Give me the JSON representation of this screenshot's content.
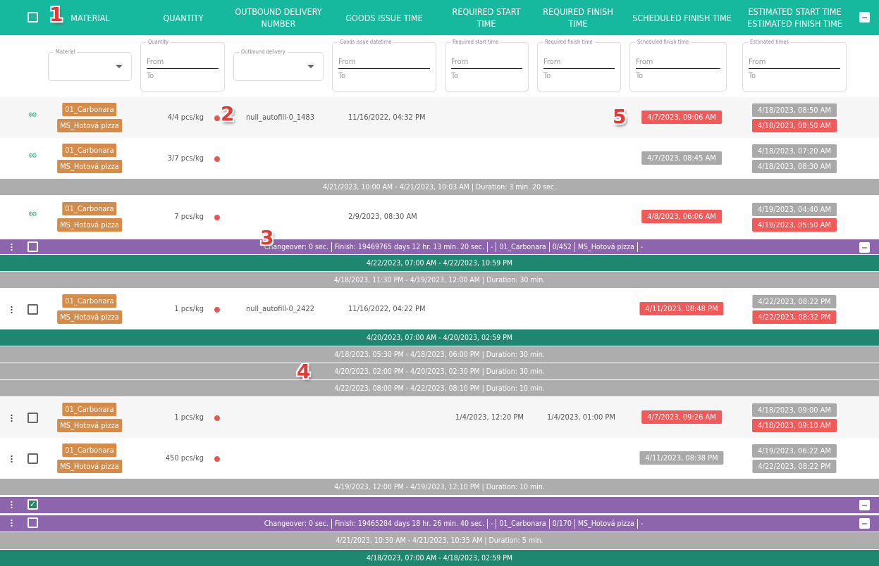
{
  "header": {
    "columns": [
      "MATERIAL",
      "QUANTITY",
      "OUTBOUND DELIVERY NUMBER",
      "GOODS ISSUE TIME",
      "REQUIRED START TIME",
      "REQUIRED FINISH TIME",
      "SCHEDULED FINISH TIME",
      "ESTIMATED START TIME ESTIMATED FINISH TIME"
    ]
  },
  "filters": {
    "material": {
      "label": "Material"
    },
    "quantity": {
      "label": "Quantity",
      "from": "From",
      "to": "To"
    },
    "outbound": {
      "label": "Outbound delivery"
    },
    "goods_issue": {
      "label": "Goods issue datetime",
      "from": "From",
      "to": "To"
    },
    "req_start": {
      "label": "Required start time",
      "from": "From",
      "to": "To"
    },
    "req_finish": {
      "label": "Required finish time",
      "from": "From",
      "to": "To"
    },
    "sched_finish": {
      "label": "Scheduled finish time",
      "from": "From",
      "to": "To"
    },
    "estimated": {
      "label": "Estimated times",
      "from": "From",
      "to": "To"
    }
  },
  "colors": {
    "header": "#17b99e",
    "shift": "#1f8670",
    "break": "#adadad",
    "group": "#8d65ad",
    "tag": "#d58c4a",
    "late": "#f25a5a",
    "ok": "#a9a9a9"
  },
  "annotations": [
    "1",
    "2",
    "3",
    "4",
    "5"
  ],
  "rows": [
    {
      "type": "order",
      "icon": "gear",
      "bg": "#f6f6f6",
      "h": 58,
      "materials": [
        "01_Carbonara",
        "MS_Hotová pizza"
      ],
      "quantity": "4/4 pcs/kg",
      "outbound": "null_autofill-0_1483",
      "goods_issue": "11/16/2022, 04:32 PM",
      "req_start": "",
      "req_finish": "",
      "sched": {
        "text": "4/7/2023, 09:06 AM",
        "status": "late"
      },
      "est": [
        {
          "text": "4/18/2023, 08:50 AM",
          "status": "ok"
        },
        {
          "text": "4/18/2023, 08:50 AM",
          "status": "late"
        }
      ]
    },
    {
      "type": "order",
      "icon": "gear",
      "bg": "#ffffff",
      "h": 58,
      "materials": [
        "01_Carbonara",
        "MS_Hotová pizza"
      ],
      "quantity": "3/7 pcs/kg",
      "outbound": "",
      "goods_issue": "",
      "req_start": "",
      "req_finish": "",
      "sched": {
        "text": "4/7/2023, 08:45 AM",
        "status": "ok"
      },
      "est": [
        {
          "text": "4/18/2023, 07:20 AM",
          "status": "ok"
        },
        {
          "text": "4/18/2023, 08:30 AM",
          "status": "ok"
        }
      ]
    },
    {
      "type": "break",
      "h": 24,
      "text": "4/21/2023, 10:00 AM - 4/21/2023, 10:03 AM | Duration: 3 min. 20 sec."
    },
    {
      "type": "order",
      "icon": "gear",
      "bg": "#ffffff",
      "h": 60,
      "materials": [
        "01_Carbonara",
        "MS_Hotová pizza"
      ],
      "quantity": "7 pcs/kg",
      "outbound": "",
      "goods_issue": "2/9/2023, 08:30 AM",
      "req_start": "",
      "req_finish": "",
      "sched": {
        "text": "4/8/2023, 06:06 AM",
        "status": "late"
      },
      "est": [
        {
          "text": "4/19/2023, 04:40 AM",
          "status": "ok"
        },
        {
          "text": "4/19/2023, 05:50 AM",
          "status": "late"
        }
      ]
    },
    {
      "type": "group",
      "h": 24,
      "checked": false,
      "parts": [
        "Changeover: 0 sec.",
        "Finish: 19469765 days 12 hr. 13 min. 20 sec.",
        "-",
        "01_Carbonara",
        "0/452",
        "MS_Hotová pizza",
        "-"
      ]
    },
    {
      "type": "shift",
      "h": 24,
      "text": "4/22/2023, 07:00 AM - 4/22/2023, 10:59 PM"
    },
    {
      "type": "break",
      "h": 24,
      "text": "4/18/2023, 11:30 PM - 4/19/2023, 12:00 AM | Duration: 30 min."
    },
    {
      "type": "order",
      "icon": "checkbox",
      "bg": "#ffffff",
      "h": 58,
      "materials": [
        "01_Carbonara",
        "MS_Hotová pizza"
      ],
      "quantity": "1 pcs/kg",
      "outbound": "null_autofill-0_2422",
      "goods_issue": "11/16/2022, 04:22 PM",
      "req_start": "",
      "req_finish": "",
      "sched": {
        "text": "4/11/2023, 08:48 PM",
        "status": "late"
      },
      "est": [
        {
          "text": "4/22/2023, 08:22 PM",
          "status": "ok"
        },
        {
          "text": "4/22/2023, 08:32 PM",
          "status": "late"
        }
      ]
    },
    {
      "type": "shift",
      "h": 24,
      "text": "4/20/2023, 07:00 AM - 4/20/2023, 02:59 PM"
    },
    {
      "type": "break",
      "h": 24,
      "text": "4/18/2023, 05:30 PM - 4/18/2023, 06:00 PM | Duration: 30 min."
    },
    {
      "type": "break",
      "h": 24,
      "text": "4/20/2023, 02:00 PM - 4/20/2023, 02:30 PM | Duration: 30 min."
    },
    {
      "type": "break",
      "h": 24,
      "text": "4/22/2023, 08:00 PM - 4/22/2023, 08:10 PM | Duration: 10 min."
    },
    {
      "type": "order",
      "icon": "checkbox",
      "bg": "#f6f6f6",
      "h": 58,
      "materials": [
        "01_Carbonara",
        "MS_Hotová pizza"
      ],
      "quantity": "1 pcs/kg",
      "outbound": "",
      "goods_issue": "",
      "req_start": "1/4/2023, 12:20 PM",
      "req_finish": "1/4/2023, 01:00 PM",
      "sched": {
        "text": "4/7/2023, 09:26 AM",
        "status": "late"
      },
      "est": [
        {
          "text": "4/18/2023, 09:00 AM",
          "status": "ok"
        },
        {
          "text": "4/18/2023, 09:10 AM",
          "status": "late"
        }
      ]
    },
    {
      "type": "order",
      "icon": "checkbox",
      "bg": "#ffffff",
      "h": 58,
      "materials": [
        "01_Carbonara",
        "MS_Hotová pizza"
      ],
      "quantity": "450 pcs/kg",
      "outbound": "",
      "goods_issue": "",
      "req_start": "",
      "req_finish": "",
      "sched": {
        "text": "4/11/2023, 08:38 PM",
        "status": "ok"
      },
      "est": [
        {
          "text": "4/19/2023, 06:22 AM",
          "status": "ok"
        },
        {
          "text": "4/22/2023, 08:22 PM",
          "status": "ok"
        }
      ]
    },
    {
      "type": "break",
      "h": 24,
      "text": "4/19/2023, 12:00 PM - 4/19/2023, 12:10 PM | Duration: 10 min."
    },
    {
      "type": "group",
      "h": 26,
      "checked": true,
      "parts": []
    },
    {
      "type": "group",
      "h": 26,
      "checked": false,
      "parts": [
        "Changeover: 0 sec.",
        "Finish: 19465284 days 18 hr. 26 min. 40 sec.",
        "-",
        "01_Carbonara",
        "0/170",
        "MS_Hotová pizza",
        "-"
      ]
    },
    {
      "type": "break",
      "h": 25,
      "text": "4/21/2023, 10:30 AM - 4/21/2023, 10:35 AM | Duration: 5 min."
    },
    {
      "type": "shift",
      "h": 24,
      "text": "4/18/2023, 07:00 AM - 4/18/2023, 02:59 PM"
    }
  ]
}
